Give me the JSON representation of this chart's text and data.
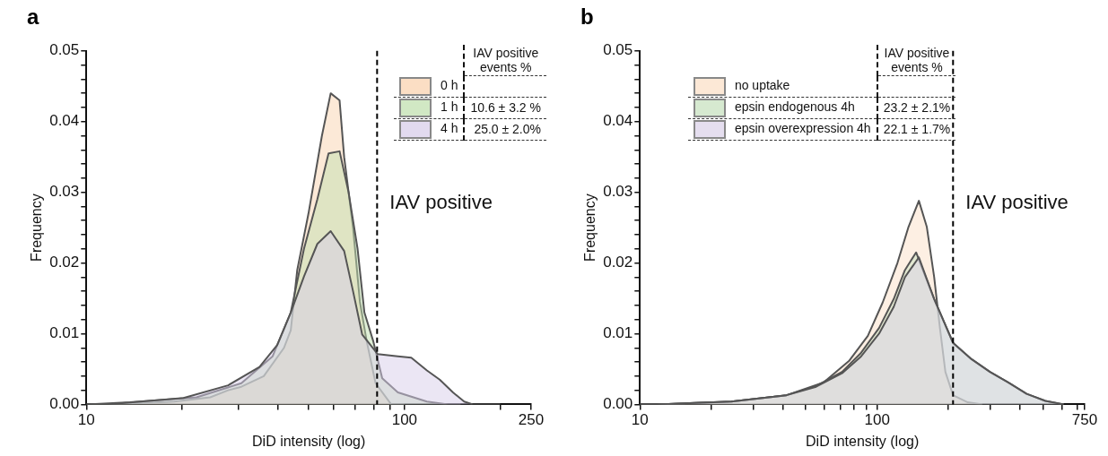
{
  "chart_data": [
    {
      "type": "area",
      "title": "a",
      "xlabel": "DiD intensity (log)",
      "ylabel": "Frequency",
      "log": "x",
      "legend": "top right",
      "xlim": [
        10,
        250
      ],
      "xticks": [
        10,
        {
          "value": 20,
          "label": null
        },
        {
          "value": 30,
          "label": null
        },
        {
          "value": 40,
          "label": null
        },
        {
          "value": 50,
          "label": null
        },
        {
          "value": 60,
          "label": null
        },
        {
          "value": 70,
          "label": null
        },
        {
          "value": 80,
          "label": null
        },
        {
          "value": 90,
          "label": null
        },
        100,
        {
          "value": 200,
          "label": null
        },
        250
      ],
      "ylim": [
        0,
        0.05
      ],
      "yticks": [
        {
          "value": 0,
          "label": "0.00"
        },
        {
          "value": 0.002,
          "label": null
        },
        {
          "value": 0.004,
          "label": null
        },
        {
          "value": 0.006,
          "label": null
        },
        {
          "value": 0.008,
          "label": null
        },
        {
          "value": 0.01,
          "label": "0.01"
        },
        {
          "value": 0.012,
          "label": null
        },
        {
          "value": 0.014,
          "label": null
        },
        {
          "value": 0.016,
          "label": null
        },
        {
          "value": 0.018,
          "label": null
        },
        {
          "value": 0.02,
          "label": "0.02"
        },
        {
          "value": 0.022,
          "label": null
        },
        {
          "value": 0.024,
          "label": null
        },
        {
          "value": 0.026,
          "label": null
        },
        {
          "value": 0.028,
          "label": null
        },
        {
          "value": 0.03,
          "label": "0.03"
        },
        {
          "value": 0.032,
          "label": null
        },
        {
          "value": 0.034,
          "label": null
        },
        {
          "value": 0.036,
          "label": null
        },
        {
          "value": 0.038,
          "label": null
        },
        {
          "value": 0.04,
          "label": "0.04"
        },
        {
          "value": 0.042,
          "label": null
        },
        {
          "value": 0.044,
          "label": null
        },
        {
          "value": 0.046,
          "label": null
        },
        {
          "value": 0.048,
          "label": null
        },
        {
          "value": 0.05,
          "label": "0.05"
        }
      ],
      "ref_lines": [
        {
          "axis": "x",
          "value": 82,
          "label": "IAV positive",
          "color": "#000000",
          "line_style": "dashed"
        }
      ],
      "annotations": [
        "IAV positive events %",
        "10.6 ± 3.2 %",
        "25.0 ± 2.0%"
      ],
      "series": [
        {
          "name": "0 h",
          "color": "#f9d3b0",
          "x": [
            10,
            12,
            18.9,
            24.5,
            27.9,
            30.7,
            36.1,
            41.8,
            43.9,
            46,
            49.9,
            55,
            58.6,
            62.5,
            64.6,
            68.9,
            72.4,
            76,
            81.1,
            90.8,
            100
          ],
          "values": [
            0,
            0,
            0.0004,
            0.001,
            0.002,
            0.0025,
            0.004,
            0.008,
            0.0105,
            0.019,
            0.027,
            0.038,
            0.044,
            0.043,
            0.035,
            0.025,
            0.0145,
            0.009,
            0.003,
            0,
            0
          ]
        },
        {
          "name": "1 h",
          "color": "#c2e0b0",
          "x": [
            10,
            13.7,
            22.2,
            30.7,
            38.5,
            43.9,
            48.3,
            53.2,
            57.7,
            62.5,
            66.7,
            71.2,
            74.8,
            79.8,
            85.1,
            95.3,
            117.6,
            137,
            150
          ],
          "values": [
            0,
            0.0003,
            0.001,
            0.003,
            0.0068,
            0.013,
            0.022,
            0.029,
            0.0355,
            0.0358,
            0.03,
            0.022,
            0.013,
            0.0089,
            0.0037,
            0.0017,
            0.0004,
            0,
            0
          ]
        },
        {
          "name": "4 h",
          "color": "#d8cdea",
          "x": [
            10,
            11.6,
            20.2,
            27.9,
            35,
            39.8,
            43.9,
            48.3,
            53.2,
            58.6,
            64.6,
            68.9,
            73.6,
            82.4,
            95.3,
            105,
            117.6,
            129,
            142,
            154,
            164,
            200
          ],
          "values": [
            0,
            0,
            0.0009,
            0.0027,
            0.0053,
            0.0084,
            0.013,
            0.0181,
            0.0227,
            0.0245,
            0.0217,
            0.016,
            0.0099,
            0.0071,
            0.0068,
            0.0066,
            0.0048,
            0.0035,
            0.0017,
            0.0004,
            0,
            0
          ]
        }
      ]
    },
    {
      "type": "area",
      "title": "b",
      "xlabel": "DiD intensity (log)",
      "ylabel": "Frequency",
      "log": "x",
      "legend": "top",
      "xlim": [
        10,
        750
      ],
      "xticks": [
        10,
        {
          "value": 20,
          "label": null
        },
        {
          "value": 30,
          "label": null
        },
        {
          "value": 40,
          "label": null
        },
        {
          "value": 50,
          "label": null
        },
        {
          "value": 60,
          "label": null
        },
        {
          "value": 70,
          "label": null
        },
        {
          "value": 80,
          "label": null
        },
        {
          "value": 90,
          "label": null
        },
        100,
        {
          "value": 200,
          "label": null
        },
        {
          "value": 300,
          "label": null
        },
        {
          "value": 400,
          "label": null
        },
        {
          "value": 500,
          "label": null
        },
        {
          "value": 600,
          "label": null
        },
        {
          "value": 700,
          "label": null
        },
        750
      ],
      "ylim": [
        0,
        0.05
      ],
      "yticks": [
        {
          "value": 0,
          "label": "0.00"
        },
        {
          "value": 0.002,
          "label": null
        },
        {
          "value": 0.004,
          "label": null
        },
        {
          "value": 0.006,
          "label": null
        },
        {
          "value": 0.008,
          "label": null
        },
        {
          "value": 0.01,
          "label": "0.01"
        },
        {
          "value": 0.012,
          "label": null
        },
        {
          "value": 0.014,
          "label": null
        },
        {
          "value": 0.016,
          "label": null
        },
        {
          "value": 0.018,
          "label": null
        },
        {
          "value": 0.02,
          "label": "0.02"
        },
        {
          "value": 0.022,
          "label": null
        },
        {
          "value": 0.024,
          "label": null
        },
        {
          "value": 0.026,
          "label": null
        },
        {
          "value": 0.028,
          "label": null
        },
        {
          "value": 0.03,
          "label": "0.03"
        },
        {
          "value": 0.032,
          "label": null
        },
        {
          "value": 0.034,
          "label": null
        },
        {
          "value": 0.036,
          "label": null
        },
        {
          "value": 0.038,
          "label": null
        },
        {
          "value": 0.04,
          "label": "0.04"
        },
        {
          "value": 0.042,
          "label": null
        },
        {
          "value": 0.044,
          "label": null
        },
        {
          "value": 0.046,
          "label": null
        },
        {
          "value": 0.048,
          "label": null
        },
        {
          "value": 0.05,
          "label": "0.05"
        }
      ],
      "ref_lines": [
        {
          "axis": "x",
          "value": 209,
          "label": "IAV positive",
          "color": "#000000",
          "line_style": "dashed"
        }
      ],
      "annotations": [
        "IAV positive events %",
        "23.2 ± 2.1%",
        "22.1 ± 1.7%"
      ],
      "series": [
        {
          "name": "no uptake",
          "color": "#fbe0c8",
          "x": [
            10,
            11.8,
            24.3,
            41.5,
            59.4,
            76.4,
            91.4,
            105.5,
            121.8,
            135.6,
            150,
            162,
            174,
            184,
            194,
            209,
            241,
            278
          ],
          "values": [
            0,
            0,
            0.0004,
            0.0013,
            0.0031,
            0.0062,
            0.0097,
            0.0144,
            0.02,
            0.0251,
            0.0288,
            0.0251,
            0.018,
            0.0108,
            0.0046,
            0.0013,
            0.0003,
            0
          ]
        },
        {
          "name": "epsin endogenous 4h",
          "color": "#c8e2c0",
          "x": [
            10,
            11.8,
            24.3,
            41.5,
            55.3,
            71.1,
            85.1,
            101.9,
            117.5,
            131,
            146,
            174,
            209,
            250,
            299,
            357,
            427,
            512,
            612
          ],
          "values": [
            0,
            0,
            0.0004,
            0.0013,
            0.0026,
            0.0046,
            0.0072,
            0.0108,
            0.0149,
            0.019,
            0.0215,
            0.0149,
            0.0087,
            0.0064,
            0.0046,
            0.0031,
            0.0015,
            0.0005,
            0
          ]
        },
        {
          "name": "epsin overexpression 4h",
          "color": "#dcd3ea",
          "x": [
            10,
            11.8,
            24.3,
            41.5,
            55.3,
            71.1,
            85.1,
            101.9,
            117.5,
            131,
            150,
            174,
            209,
            250,
            299,
            357,
            427,
            512,
            612
          ],
          "values": [
            0,
            0,
            0.0004,
            0.0013,
            0.0025,
            0.0044,
            0.0067,
            0.01,
            0.0138,
            0.018,
            0.0208,
            0.0149,
            0.0087,
            0.0064,
            0.0046,
            0.0031,
            0.0015,
            0.0005,
            0
          ]
        }
      ]
    }
  ]
}
